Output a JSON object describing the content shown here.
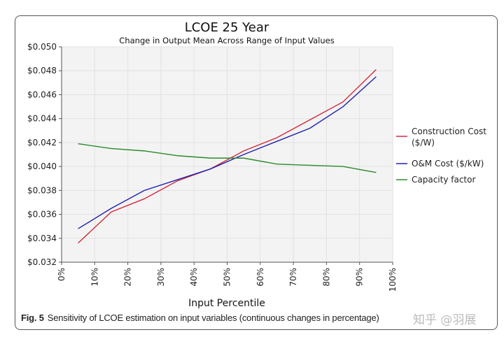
{
  "chart_data": {
    "type": "line",
    "title": "LCOE 25 Year",
    "subtitle": "Change in Output Mean Across Range of Input Values",
    "xlabel": "Input Percentile",
    "ylabel": "",
    "x": [
      5,
      15,
      25,
      35,
      45,
      55,
      65,
      75,
      85,
      95
    ],
    "xlim": [
      0,
      100
    ],
    "ylim": [
      0.032,
      0.05
    ],
    "xticks": [
      "0%",
      "10%",
      "20%",
      "30%",
      "40%",
      "50%",
      "60%",
      "70%",
      "80%",
      "90%",
      "100%"
    ],
    "yticks": [
      "$0.032",
      "$0.034",
      "$0.036",
      "$0.038",
      "$0.040",
      "$0.042",
      "$0.044",
      "$0.046",
      "$0.048",
      "$0.050"
    ],
    "grid": true,
    "legend_position": "right",
    "series": [
      {
        "name": "Construction Cost ($/W)",
        "color": "#d22a3c",
        "values": [
          0.0336,
          0.0362,
          0.0373,
          0.0388,
          0.0398,
          0.0413,
          0.0424,
          0.0439,
          0.0454,
          0.0481
        ]
      },
      {
        "name": "O&M Cost ($/kW)",
        "color": "#2020b0",
        "values": [
          0.0348,
          0.0365,
          0.038,
          0.0389,
          0.0398,
          0.041,
          0.0421,
          0.0432,
          0.045,
          0.0475
        ]
      },
      {
        "name": "Capacity factor",
        "color": "#2a8a2a",
        "values": [
          0.0419,
          0.0415,
          0.0413,
          0.0409,
          0.0407,
          0.0407,
          0.0402,
          0.0401,
          0.04,
          0.0395
        ]
      }
    ]
  },
  "caption": {
    "label": "Fig. 5",
    "text": "Sensitivity of LCOE estimation on input variables (continuous changes in percentage)"
  },
  "watermark": "知乎 @羽展"
}
